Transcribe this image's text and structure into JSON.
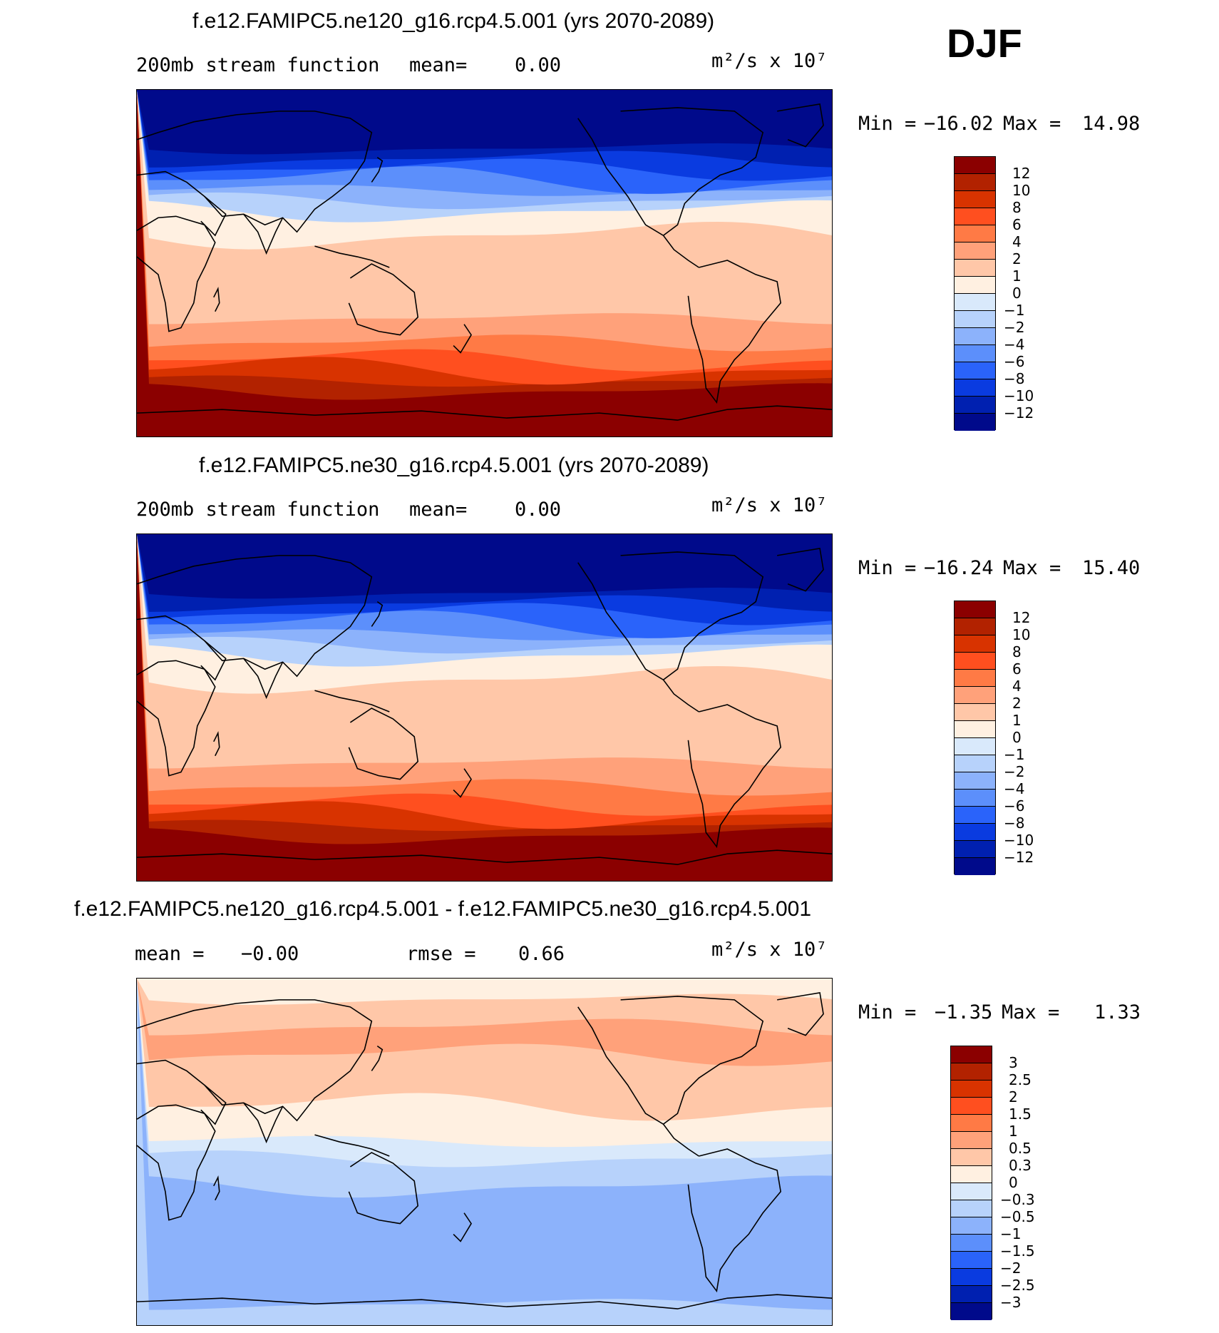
{
  "season": "DJF",
  "panels": [
    {
      "title": "f.e12.FAMIPC5.ne120_g16.rcp4.5.001 (yrs 2070-2089)",
      "left_label": "200mb stream function",
      "stat1_label": "mean=",
      "stat1_value": "0.00",
      "stat2_label": "",
      "stat2_value": "",
      "units": "m²/s x 10⁷",
      "min_label": "Min =",
      "min_value": "−16.02",
      "max_label": "Max =",
      "max_value": "14.98",
      "colorbar": {
        "levels": [
          "12",
          "10",
          "8",
          "6",
          "4",
          "2",
          "1",
          "0",
          "−1",
          "−2",
          "−4",
          "−6",
          "−8",
          "−10",
          "−12"
        ],
        "colors": [
          "#8b0000",
          "#b22200",
          "#d83300",
          "#ff4f1f",
          "#ff7a45",
          "#ffa17a",
          "#ffc7a8",
          "#fff0e1",
          "#d9e9fb",
          "#b7d2fb",
          "#8cb2fb",
          "#5c8ffb",
          "#2a63fa",
          "#0a3be0",
          "#0020b0",
          "#000a8b"
        ]
      },
      "contours": {
        "direction": "warm-south",
        "bands": [
          "#000a8b",
          "#0020b0",
          "#0a3be0",
          "#2a63fa",
          "#5c8ffb",
          "#8cb2fb",
          "#b7d2fb",
          "#fff0e1",
          "#ffc7a8",
          "#ffa17a",
          "#ff7a45",
          "#ff4f1f",
          "#d83300",
          "#b22200",
          "#8b0000"
        ]
      }
    },
    {
      "title": "f.e12.FAMIPC5.ne30_g16.rcp4.5.001 (yrs 2070-2089)",
      "left_label": "200mb stream function",
      "stat1_label": "mean=",
      "stat1_value": "0.00",
      "stat2_label": "",
      "stat2_value": "",
      "units": "m²/s x 10⁷",
      "min_label": "Min =",
      "min_value": "−16.24",
      "max_label": "Max =",
      "max_value": "15.40",
      "colorbar": {
        "levels": [
          "12",
          "10",
          "8",
          "6",
          "4",
          "2",
          "1",
          "0",
          "−1",
          "−2",
          "−4",
          "−6",
          "−8",
          "−10",
          "−12"
        ],
        "colors": [
          "#8b0000",
          "#b22200",
          "#d83300",
          "#ff4f1f",
          "#ff7a45",
          "#ffa17a",
          "#ffc7a8",
          "#fff0e1",
          "#d9e9fb",
          "#b7d2fb",
          "#8cb2fb",
          "#5c8ffb",
          "#2a63fa",
          "#0a3be0",
          "#0020b0",
          "#000a8b"
        ]
      },
      "contours": {
        "direction": "warm-south",
        "bands": [
          "#000a8b",
          "#0020b0",
          "#0a3be0",
          "#2a63fa",
          "#5c8ffb",
          "#8cb2fb",
          "#b7d2fb",
          "#fff0e1",
          "#ffc7a8",
          "#ffa17a",
          "#ff7a45",
          "#ff4f1f",
          "#d83300",
          "#b22200",
          "#8b0000"
        ]
      }
    },
    {
      "title": "f.e12.FAMIPC5.ne120_g16.rcp4.5.001 - f.e12.FAMIPC5.ne30_g16.rcp4.5.001",
      "left_label": "",
      "stat1_label": "mean =",
      "stat1_value": "−0.00",
      "stat2_label": "rmse =",
      "stat2_value": "0.66",
      "units": "m²/s x 10⁷",
      "min_label": "Min =",
      "min_value": "−1.35",
      "max_label": "Max =",
      "max_value": "1.33",
      "colorbar": {
        "levels": [
          "3",
          "2.5",
          "2",
          "1.5",
          "1",
          "0.5",
          "0.3",
          "0",
          "−0.3",
          "−0.5",
          "−1",
          "−1.5",
          "−2",
          "−2.5",
          "−3"
        ],
        "colors": [
          "#8b0000",
          "#b22200",
          "#d83300",
          "#ff4f1f",
          "#ff7a45",
          "#ffa17a",
          "#ffc7a8",
          "#fff0e1",
          "#d9e9fb",
          "#b7d2fb",
          "#8cb2fb",
          "#5c8ffb",
          "#2a63fa",
          "#0a3be0",
          "#0020b0",
          "#000a8b"
        ]
      },
      "contours": {
        "direction": "warm-north",
        "bands": [
          "#fff0e1",
          "#ffc7a8",
          "#ffa17a",
          "#ffc7a8",
          "#fff0e1",
          "#d9e9fb",
          "#b7d2fb",
          "#8cb2fb",
          "#8cb2fb",
          "#b7d2fb"
        ]
      }
    }
  ]
}
